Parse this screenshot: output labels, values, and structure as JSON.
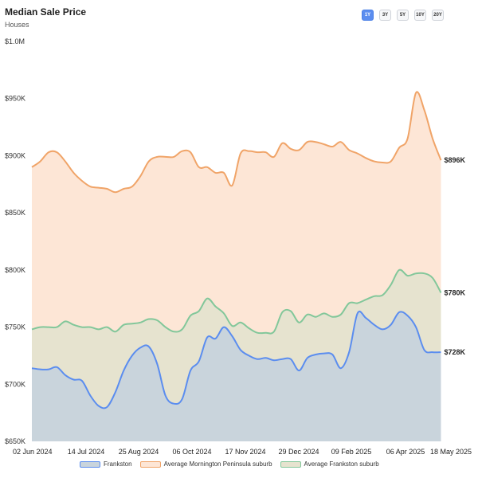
{
  "header": {
    "title": "Median Sale Price",
    "subtitle": "Houses"
  },
  "ranges": [
    "1Y",
    "3Y",
    "5Y",
    "10Y",
    "20Y"
  ],
  "active_range": "1Y",
  "colors": {
    "frankston": "#5b8def",
    "frankston_fill": "#c9d4dc",
    "mornington": "#f0a468",
    "mornington_fill": "#fde6d6",
    "frankston_avg": "#82c79a",
    "frankston_avg_fill": "#e6e3cf"
  },
  "chart_data": {
    "type": "area",
    "title": "Median Sale Price",
    "subtitle": "Houses",
    "x_ticks": [
      "02 Jun 2024",
      "14 Jul 2024",
      "25 Aug 2024",
      "06 Oct 2024",
      "17 Nov 2024",
      "29 Dec 2024",
      "09 Feb 2025",
      "06 Apr 2025",
      "18 May 2025"
    ],
    "y_ticks": [
      "$650K",
      "$700K",
      "$750K",
      "$800K",
      "$850K",
      "$900K",
      "$950K",
      "$1.0M"
    ],
    "ylim": [
      650000,
      1000000
    ],
    "grid": false,
    "legend_position": "bottom",
    "series": [
      {
        "name": "Average Mornington Peninsula suburb",
        "end_label": "$896K",
        "points": [
          [
            "2024-06-02",
            890000
          ],
          [
            "2024-06-09",
            895000
          ],
          [
            "2024-06-16",
            903000
          ],
          [
            "2024-06-23",
            903000
          ],
          [
            "2024-06-30",
            895000
          ],
          [
            "2024-07-07",
            885000
          ],
          [
            "2024-07-14",
            878000
          ],
          [
            "2024-07-21",
            873000
          ],
          [
            "2024-07-28",
            872000
          ],
          [
            "2024-08-04",
            871000
          ],
          [
            "2024-08-11",
            868000
          ],
          [
            "2024-08-18",
            871000
          ],
          [
            "2024-08-25",
            873000
          ],
          [
            "2024-09-01",
            882000
          ],
          [
            "2024-09-08",
            895000
          ],
          [
            "2024-09-15",
            899000
          ],
          [
            "2024-09-22",
            899000
          ],
          [
            "2024-09-29",
            899000
          ],
          [
            "2024-10-06",
            904000
          ],
          [
            "2024-10-13",
            903000
          ],
          [
            "2024-10-20",
            890000
          ],
          [
            "2024-10-27",
            890000
          ],
          [
            "2024-11-03",
            885000
          ],
          [
            "2024-11-10",
            885000
          ],
          [
            "2024-11-17",
            874000
          ],
          [
            "2024-11-24",
            902000
          ],
          [
            "2024-12-01",
            904000
          ],
          [
            "2024-12-08",
            903000
          ],
          [
            "2024-12-15",
            903000
          ],
          [
            "2024-12-22",
            899000
          ],
          [
            "2024-12-29",
            911000
          ],
          [
            "2025-01-05",
            906000
          ],
          [
            "2025-01-12",
            905000
          ],
          [
            "2025-01-19",
            912000
          ],
          [
            "2025-01-26",
            912000
          ],
          [
            "2025-02-02",
            910000
          ],
          [
            "2025-02-09",
            908000
          ],
          [
            "2025-02-16",
            912000
          ],
          [
            "2025-02-23",
            905000
          ],
          [
            "2025-03-02",
            902000
          ],
          [
            "2025-03-09",
            898000
          ],
          [
            "2025-03-16",
            895000
          ],
          [
            "2025-03-23",
            894000
          ],
          [
            "2025-03-30",
            895000
          ],
          [
            "2025-04-06",
            907000
          ],
          [
            "2025-04-13",
            915000
          ],
          [
            "2025-04-20",
            955000
          ],
          [
            "2025-04-27",
            940000
          ],
          [
            "2025-05-04",
            915000
          ],
          [
            "2025-05-11",
            896000
          ]
        ]
      },
      {
        "name": "Average Frankston suburb",
        "end_label": "$780K",
        "points": [
          [
            "2024-06-02",
            748000
          ],
          [
            "2024-06-09",
            750000
          ],
          [
            "2024-06-16",
            750000
          ],
          [
            "2024-06-23",
            750000
          ],
          [
            "2024-06-30",
            755000
          ],
          [
            "2024-07-07",
            752000
          ],
          [
            "2024-07-14",
            750000
          ],
          [
            "2024-07-21",
            750000
          ],
          [
            "2024-07-28",
            748000
          ],
          [
            "2024-08-04",
            750000
          ],
          [
            "2024-08-11",
            746000
          ],
          [
            "2024-08-18",
            752000
          ],
          [
            "2024-08-25",
            753000
          ],
          [
            "2024-09-01",
            754000
          ],
          [
            "2024-09-08",
            757000
          ],
          [
            "2024-09-15",
            756000
          ],
          [
            "2024-09-22",
            750000
          ],
          [
            "2024-09-29",
            746000
          ],
          [
            "2024-10-06",
            748000
          ],
          [
            "2024-10-13",
            760000
          ],
          [
            "2024-10-20",
            764000
          ],
          [
            "2024-10-27",
            775000
          ],
          [
            "2024-11-03",
            768000
          ],
          [
            "2024-11-10",
            762000
          ],
          [
            "2024-11-17",
            751000
          ],
          [
            "2024-11-24",
            754000
          ],
          [
            "2024-12-01",
            749000
          ],
          [
            "2024-12-08",
            745000
          ],
          [
            "2024-12-15",
            745000
          ],
          [
            "2024-12-22",
            746000
          ],
          [
            "2024-12-29",
            763000
          ],
          [
            "2025-01-05",
            764000
          ],
          [
            "2025-01-12",
            754000
          ],
          [
            "2025-01-19",
            761000
          ],
          [
            "2025-01-26",
            759000
          ],
          [
            "2025-02-02",
            762000
          ],
          [
            "2025-02-09",
            759000
          ],
          [
            "2025-02-16",
            761000
          ],
          [
            "2025-02-23",
            771000
          ],
          [
            "2025-03-02",
            771000
          ],
          [
            "2025-03-09",
            774000
          ],
          [
            "2025-03-16",
            777000
          ],
          [
            "2025-03-23",
            778000
          ],
          [
            "2025-03-30",
            787000
          ],
          [
            "2025-04-06",
            800000
          ],
          [
            "2025-04-13",
            795000
          ],
          [
            "2025-04-20",
            797000
          ],
          [
            "2025-04-27",
            797000
          ],
          [
            "2025-05-04",
            793000
          ],
          [
            "2025-05-11",
            780000
          ]
        ]
      },
      {
        "name": "Frankston",
        "end_label": "$728K",
        "points": [
          [
            "2024-06-02",
            714000
          ],
          [
            "2024-06-09",
            713000
          ],
          [
            "2024-06-16",
            713000
          ],
          [
            "2024-06-23",
            715000
          ],
          [
            "2024-06-30",
            708000
          ],
          [
            "2024-07-07",
            704000
          ],
          [
            "2024-07-14",
            703000
          ],
          [
            "2024-07-21",
            690000
          ],
          [
            "2024-07-28",
            681000
          ],
          [
            "2024-08-04",
            680000
          ],
          [
            "2024-08-11",
            693000
          ],
          [
            "2024-08-18",
            712000
          ],
          [
            "2024-08-25",
            725000
          ],
          [
            "2024-09-01",
            732000
          ],
          [
            "2024-09-08",
            733000
          ],
          [
            "2024-09-15",
            718000
          ],
          [
            "2024-09-22",
            690000
          ],
          [
            "2024-09-29",
            683000
          ],
          [
            "2024-10-06",
            687000
          ],
          [
            "2024-10-13",
            712000
          ],
          [
            "2024-10-20",
            720000
          ],
          [
            "2024-10-27",
            741000
          ],
          [
            "2024-11-03",
            740000
          ],
          [
            "2024-11-10",
            750000
          ],
          [
            "2024-11-17",
            742000
          ],
          [
            "2024-11-24",
            730000
          ],
          [
            "2024-12-01",
            725000
          ],
          [
            "2024-12-08",
            722000
          ],
          [
            "2024-12-15",
            723000
          ],
          [
            "2024-12-22",
            721000
          ],
          [
            "2024-12-29",
            722000
          ],
          [
            "2025-01-05",
            722000
          ],
          [
            "2025-01-12",
            712000
          ],
          [
            "2025-01-19",
            723000
          ],
          [
            "2025-01-26",
            726000
          ],
          [
            "2025-02-02",
            727000
          ],
          [
            "2025-02-09",
            726000
          ],
          [
            "2025-02-16",
            714000
          ],
          [
            "2025-02-23",
            728000
          ],
          [
            "2025-03-02",
            762000
          ],
          [
            "2025-03-09",
            758000
          ],
          [
            "2025-03-16",
            752000
          ],
          [
            "2025-03-23",
            748000
          ],
          [
            "2025-03-30",
            752000
          ],
          [
            "2025-04-06",
            763000
          ],
          [
            "2025-04-13",
            760000
          ],
          [
            "2025-04-20",
            750000
          ],
          [
            "2025-04-27",
            730000
          ],
          [
            "2025-05-04",
            728000
          ],
          [
            "2025-05-11",
            728000
          ]
        ]
      }
    ]
  },
  "legend": [
    {
      "label": "Frankston",
      "key": "frankston"
    },
    {
      "label": "Average Mornington Peninsula suburb",
      "key": "mornington"
    },
    {
      "label": "Average Frankston suburb",
      "key": "frankston_avg"
    }
  ]
}
